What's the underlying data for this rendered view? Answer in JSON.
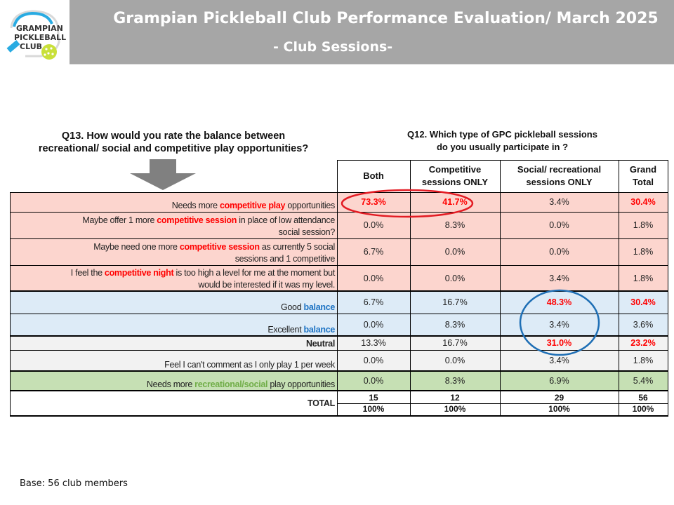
{
  "header": {
    "logo_text": [
      "GRAMPIAN",
      "PICKLEBALL",
      "CLUB"
    ],
    "title": "Grampian Pickleball Club Performance Evaluation/ March 2025",
    "subtitle": "- Club Sessions-"
  },
  "questions": {
    "q13_line1": "Q13. How would you rate the balance between",
    "q13_line2": "recreational/ social and competitive play opportunities?",
    "q12_line1": "Q12. Which type of GPC pickleball sessions",
    "q12_line2": "do you usually participate in ?"
  },
  "colors": {
    "competitive_bg": "#fcd5ce",
    "balance_bg": "#ddebf7",
    "neutral_bg": "#f2f2f2",
    "recreational_bg": "#c6e0b4",
    "highlight_red": "#ff0000",
    "balance_blue": "#1f74c4",
    "recreational_green": "#70ad47",
    "oval_red": "#e31b23",
    "oval_blue": "#1f6fb5"
  },
  "table": {
    "columns": [
      {
        "line1": "Both",
        "line2": ""
      },
      {
        "line1": "Competitive",
        "line2": "sessions ONLY"
      },
      {
        "line1": "Social/ recreational",
        "line2": "sessions ONLY"
      },
      {
        "line1": "Grand",
        "line2": "Total"
      }
    ],
    "rows": [
      {
        "pre": "Needs more ",
        "hl": "competitive play",
        "post": " opportunities",
        "post2": "",
        "values": [
          "73.3%",
          "41.7%",
          "3.4%",
          "30.4%"
        ],
        "highlight_values": [
          true,
          true,
          false,
          true
        ]
      },
      {
        "pre": "Maybe offer 1 more ",
        "hl": "competitive session",
        "post": " in place of low attendance",
        "post2": "social session?",
        "values": [
          "0.0%",
          "8.3%",
          "0.0%",
          "1.8%"
        ],
        "highlight_values": [
          false,
          false,
          false,
          false
        ]
      },
      {
        "pre": "Maybe need one more ",
        "hl": "competitive session",
        "post": " as currently 5 social",
        "post2": "sessions and 1 competitive",
        "values": [
          "6.7%",
          "0.0%",
          "0.0%",
          "1.8%"
        ],
        "highlight_values": [
          false,
          false,
          false,
          false
        ]
      },
      {
        "pre": "I feel the ",
        "hl": "competitive night",
        "post": " is too high a level for me at the moment but",
        "post2": "would be interested if it was my level.",
        "values": [
          "0.0%",
          "0.0%",
          "3.4%",
          "1.8%"
        ],
        "highlight_values": [
          false,
          false,
          false,
          false
        ]
      },
      {
        "pre": "Good ",
        "hl": "balance",
        "post": "",
        "post2": "",
        "values": [
          "6.7%",
          "16.7%",
          "48.3%",
          "30.4%"
        ],
        "highlight_values": [
          false,
          false,
          true,
          true
        ]
      },
      {
        "pre": "Excellent ",
        "hl": "balance",
        "post": "",
        "post2": "",
        "values": [
          "0.0%",
          "8.3%",
          "3.4%",
          "3.6%"
        ],
        "highlight_values": [
          false,
          false,
          false,
          false
        ]
      },
      {
        "pre": "",
        "hl": "Neutral",
        "post": "",
        "post2": "",
        "values": [
          "13.3%",
          "16.7%",
          "31.0%",
          "23.2%"
        ],
        "highlight_values": [
          false,
          false,
          true,
          true
        ]
      },
      {
        "pre": "Feel I can't comment as I only play 1 per week",
        "hl": "",
        "post": "",
        "post2": "",
        "values": [
          "0.0%",
          "0.0%",
          "3.4%",
          "1.8%"
        ],
        "highlight_values": [
          false,
          false,
          false,
          false
        ]
      },
      {
        "pre": "Needs more ",
        "hl": "recreational/social",
        "post": " play opportunities",
        "post2": "",
        "values": [
          "0.0%",
          "8.3%",
          "6.9%",
          "5.4%"
        ],
        "highlight_values": [
          false,
          false,
          false,
          false
        ]
      }
    ],
    "total": {
      "label": "TOTAL",
      "counts": [
        "15",
        "12",
        "29",
        "56"
      ],
      "percents": [
        "100%",
        "100%",
        "100%",
        "100%"
      ]
    }
  },
  "footer": {
    "base": "Base: 56 club members"
  }
}
